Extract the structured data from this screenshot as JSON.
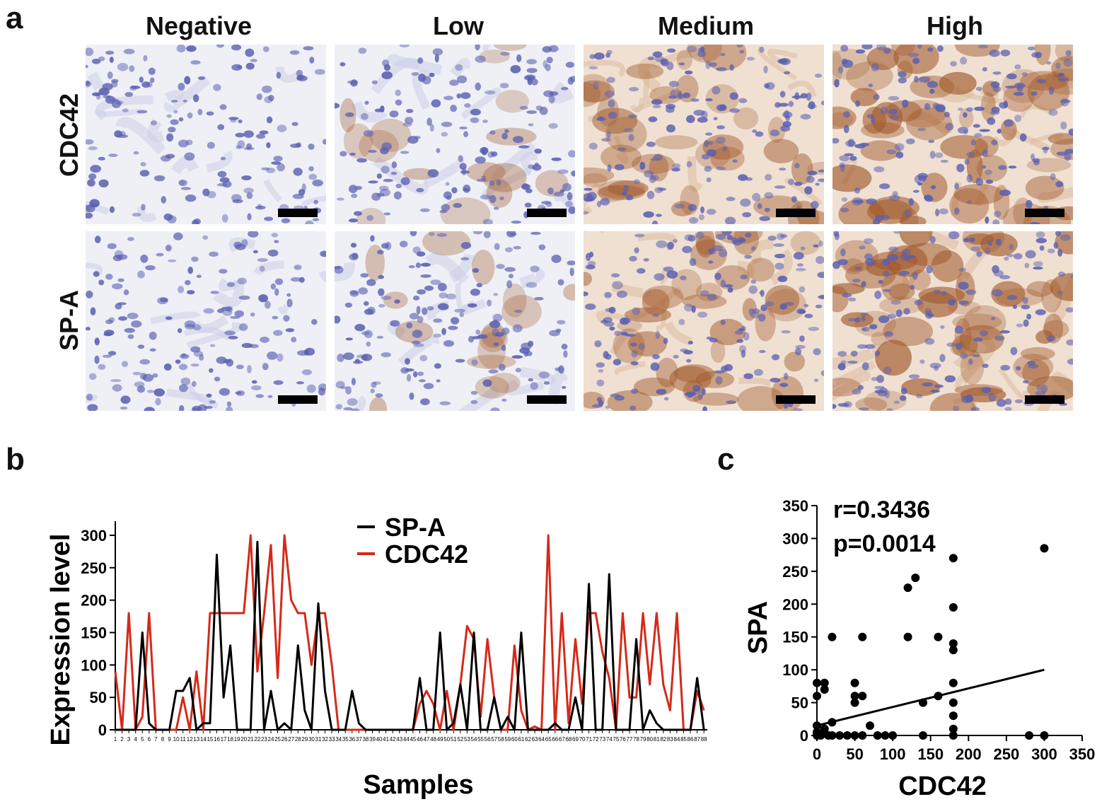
{
  "panel_a": {
    "letter": "a",
    "columns": [
      "Negative",
      "Low",
      "Medium",
      "High"
    ],
    "rows": [
      "CDC42",
      "SP-A"
    ],
    "stain_levels": [
      0.0,
      0.25,
      0.6,
      0.9
    ],
    "colors": {
      "hematoxylin": "#5a5fb0",
      "dab": "#a0582a",
      "background": "#eef0f6"
    }
  },
  "panel_b": {
    "letter": "b"
  },
  "panel_c": {
    "letter": "c"
  },
  "chart_data": [
    {
      "type": "line",
      "panel": "b",
      "title": "",
      "xlabel": "Samples",
      "ylabel": "Expression level",
      "ylim": [
        0,
        300
      ],
      "yticks": [
        0,
        50,
        100,
        150,
        200,
        250,
        300
      ],
      "legend_position": "top-center",
      "x": [
        1,
        2,
        3,
        4,
        5,
        6,
        7,
        8,
        9,
        10,
        11,
        12,
        13,
        14,
        15,
        16,
        17,
        18,
        19,
        20,
        21,
        22,
        23,
        24,
        25,
        26,
        27,
        28,
        29,
        30,
        31,
        32,
        33,
        34,
        35,
        36,
        37,
        38,
        39,
        40,
        41,
        42,
        43,
        44,
        45,
        46,
        47,
        48,
        49,
        50,
        51,
        52,
        53,
        54,
        55,
        56,
        57,
        58,
        59,
        60,
        61,
        62,
        63,
        64,
        65,
        66,
        67,
        68,
        69,
        70,
        71,
        72,
        73,
        74,
        75,
        76,
        77,
        78,
        79,
        80,
        81,
        82,
        83,
        84,
        85,
        86,
        87,
        88
      ],
      "series": [
        {
          "name": "SP-A",
          "color": "#000000",
          "values": [
            0,
            0,
            0,
            0,
            150,
            10,
            0,
            0,
            0,
            60,
            60,
            80,
            0,
            10,
            10,
            270,
            50,
            130,
            0,
            0,
            0,
            290,
            0,
            60,
            0,
            10,
            0,
            130,
            30,
            0,
            195,
            60,
            0,
            0,
            0,
            60,
            10,
            0,
            0,
            0,
            0,
            0,
            0,
            0,
            0,
            80,
            0,
            0,
            150,
            0,
            10,
            70,
            0,
            150,
            0,
            0,
            50,
            0,
            20,
            0,
            150,
            0,
            0,
            0,
            0,
            10,
            0,
            0,
            50,
            0,
            225,
            0,
            0,
            240,
            0,
            0,
            0,
            140,
            0,
            30,
            10,
            0,
            0,
            0,
            0,
            0,
            80,
            0
          ]
        },
        {
          "name": "CDC42",
          "color": "#d42a1a",
          "values": [
            90,
            0,
            180,
            0,
            20,
            180,
            0,
            0,
            0,
            0,
            50,
            0,
            90,
            0,
            180,
            180,
            180,
            180,
            180,
            180,
            300,
            90,
            180,
            285,
            80,
            300,
            200,
            180,
            180,
            100,
            180,
            180,
            100,
            0,
            0,
            0,
            0,
            0,
            0,
            0,
            0,
            0,
            0,
            0,
            0,
            40,
            60,
            40,
            0,
            60,
            0,
            70,
            160,
            140,
            20,
            140,
            50,
            0,
            0,
            130,
            30,
            0,
            5,
            0,
            300,
            0,
            180,
            10,
            140,
            40,
            180,
            180,
            120,
            80,
            0,
            180,
            50,
            50,
            180,
            70,
            180,
            70,
            30,
            180,
            0,
            0,
            60,
            30
          ]
        }
      ]
    },
    {
      "type": "scatter",
      "panel": "c",
      "title": "",
      "xlabel": "CDC42",
      "ylabel": "SPA",
      "xlim": [
        0,
        350
      ],
      "ylim": [
        0,
        350
      ],
      "xticks": [
        0,
        50,
        100,
        150,
        200,
        250,
        300,
        350
      ],
      "yticks": [
        0,
        50,
        100,
        150,
        200,
        250,
        300,
        350
      ],
      "annotations": [
        "r=0.3436",
        "p=0.0014"
      ],
      "fit_line": {
        "x": [
          0,
          300
        ],
        "y": [
          15,
          100
        ]
      },
      "points": [
        [
          0,
          80
        ],
        [
          0,
          60
        ],
        [
          0,
          15
        ],
        [
          0,
          5
        ],
        [
          0,
          0
        ],
        [
          5,
          0
        ],
        [
          10,
          80
        ],
        [
          10,
          70
        ],
        [
          10,
          10
        ],
        [
          15,
          0
        ],
        [
          20,
          150
        ],
        [
          20,
          20
        ],
        [
          20,
          0
        ],
        [
          30,
          0
        ],
        [
          40,
          0
        ],
        [
          50,
          80
        ],
        [
          50,
          60
        ],
        [
          50,
          50
        ],
        [
          50,
          0
        ],
        [
          60,
          150
        ],
        [
          60,
          60
        ],
        [
          60,
          0
        ],
        [
          70,
          15
        ],
        [
          80,
          0
        ],
        [
          90,
          0
        ],
        [
          100,
          0
        ],
        [
          120,
          225
        ],
        [
          120,
          150
        ],
        [
          130,
          240
        ],
        [
          140,
          50
        ],
        [
          140,
          0
        ],
        [
          160,
          150
        ],
        [
          160,
          60
        ],
        [
          180,
          270
        ],
        [
          180,
          195
        ],
        [
          180,
          140
        ],
        [
          180,
          130
        ],
        [
          180,
          80
        ],
        [
          180,
          50
        ],
        [
          180,
          30
        ],
        [
          180,
          10
        ],
        [
          180,
          0
        ],
        [
          280,
          0
        ],
        [
          300,
          285
        ],
        [
          300,
          0
        ]
      ]
    }
  ]
}
